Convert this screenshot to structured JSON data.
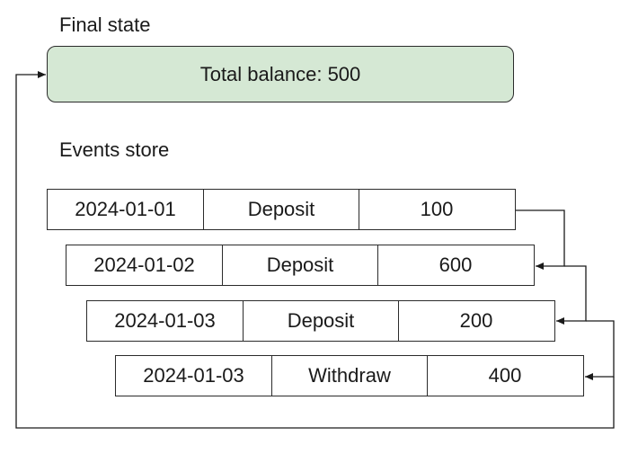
{
  "final_state": {
    "heading": "Final state",
    "balance_text": "Total balance: 500",
    "fill_color": "#d5e8d4"
  },
  "events_store": {
    "heading": "Events store",
    "events": [
      {
        "date": "2024-01-01",
        "type": "Deposit",
        "amount": "100"
      },
      {
        "date": "2024-01-02",
        "type": "Deposit",
        "amount": "600"
      },
      {
        "date": "2024-01-03",
        "type": "Deposit",
        "amount": "200"
      },
      {
        "date": "2024-01-03",
        "type": "Withdraw",
        "amount": "400"
      }
    ]
  }
}
